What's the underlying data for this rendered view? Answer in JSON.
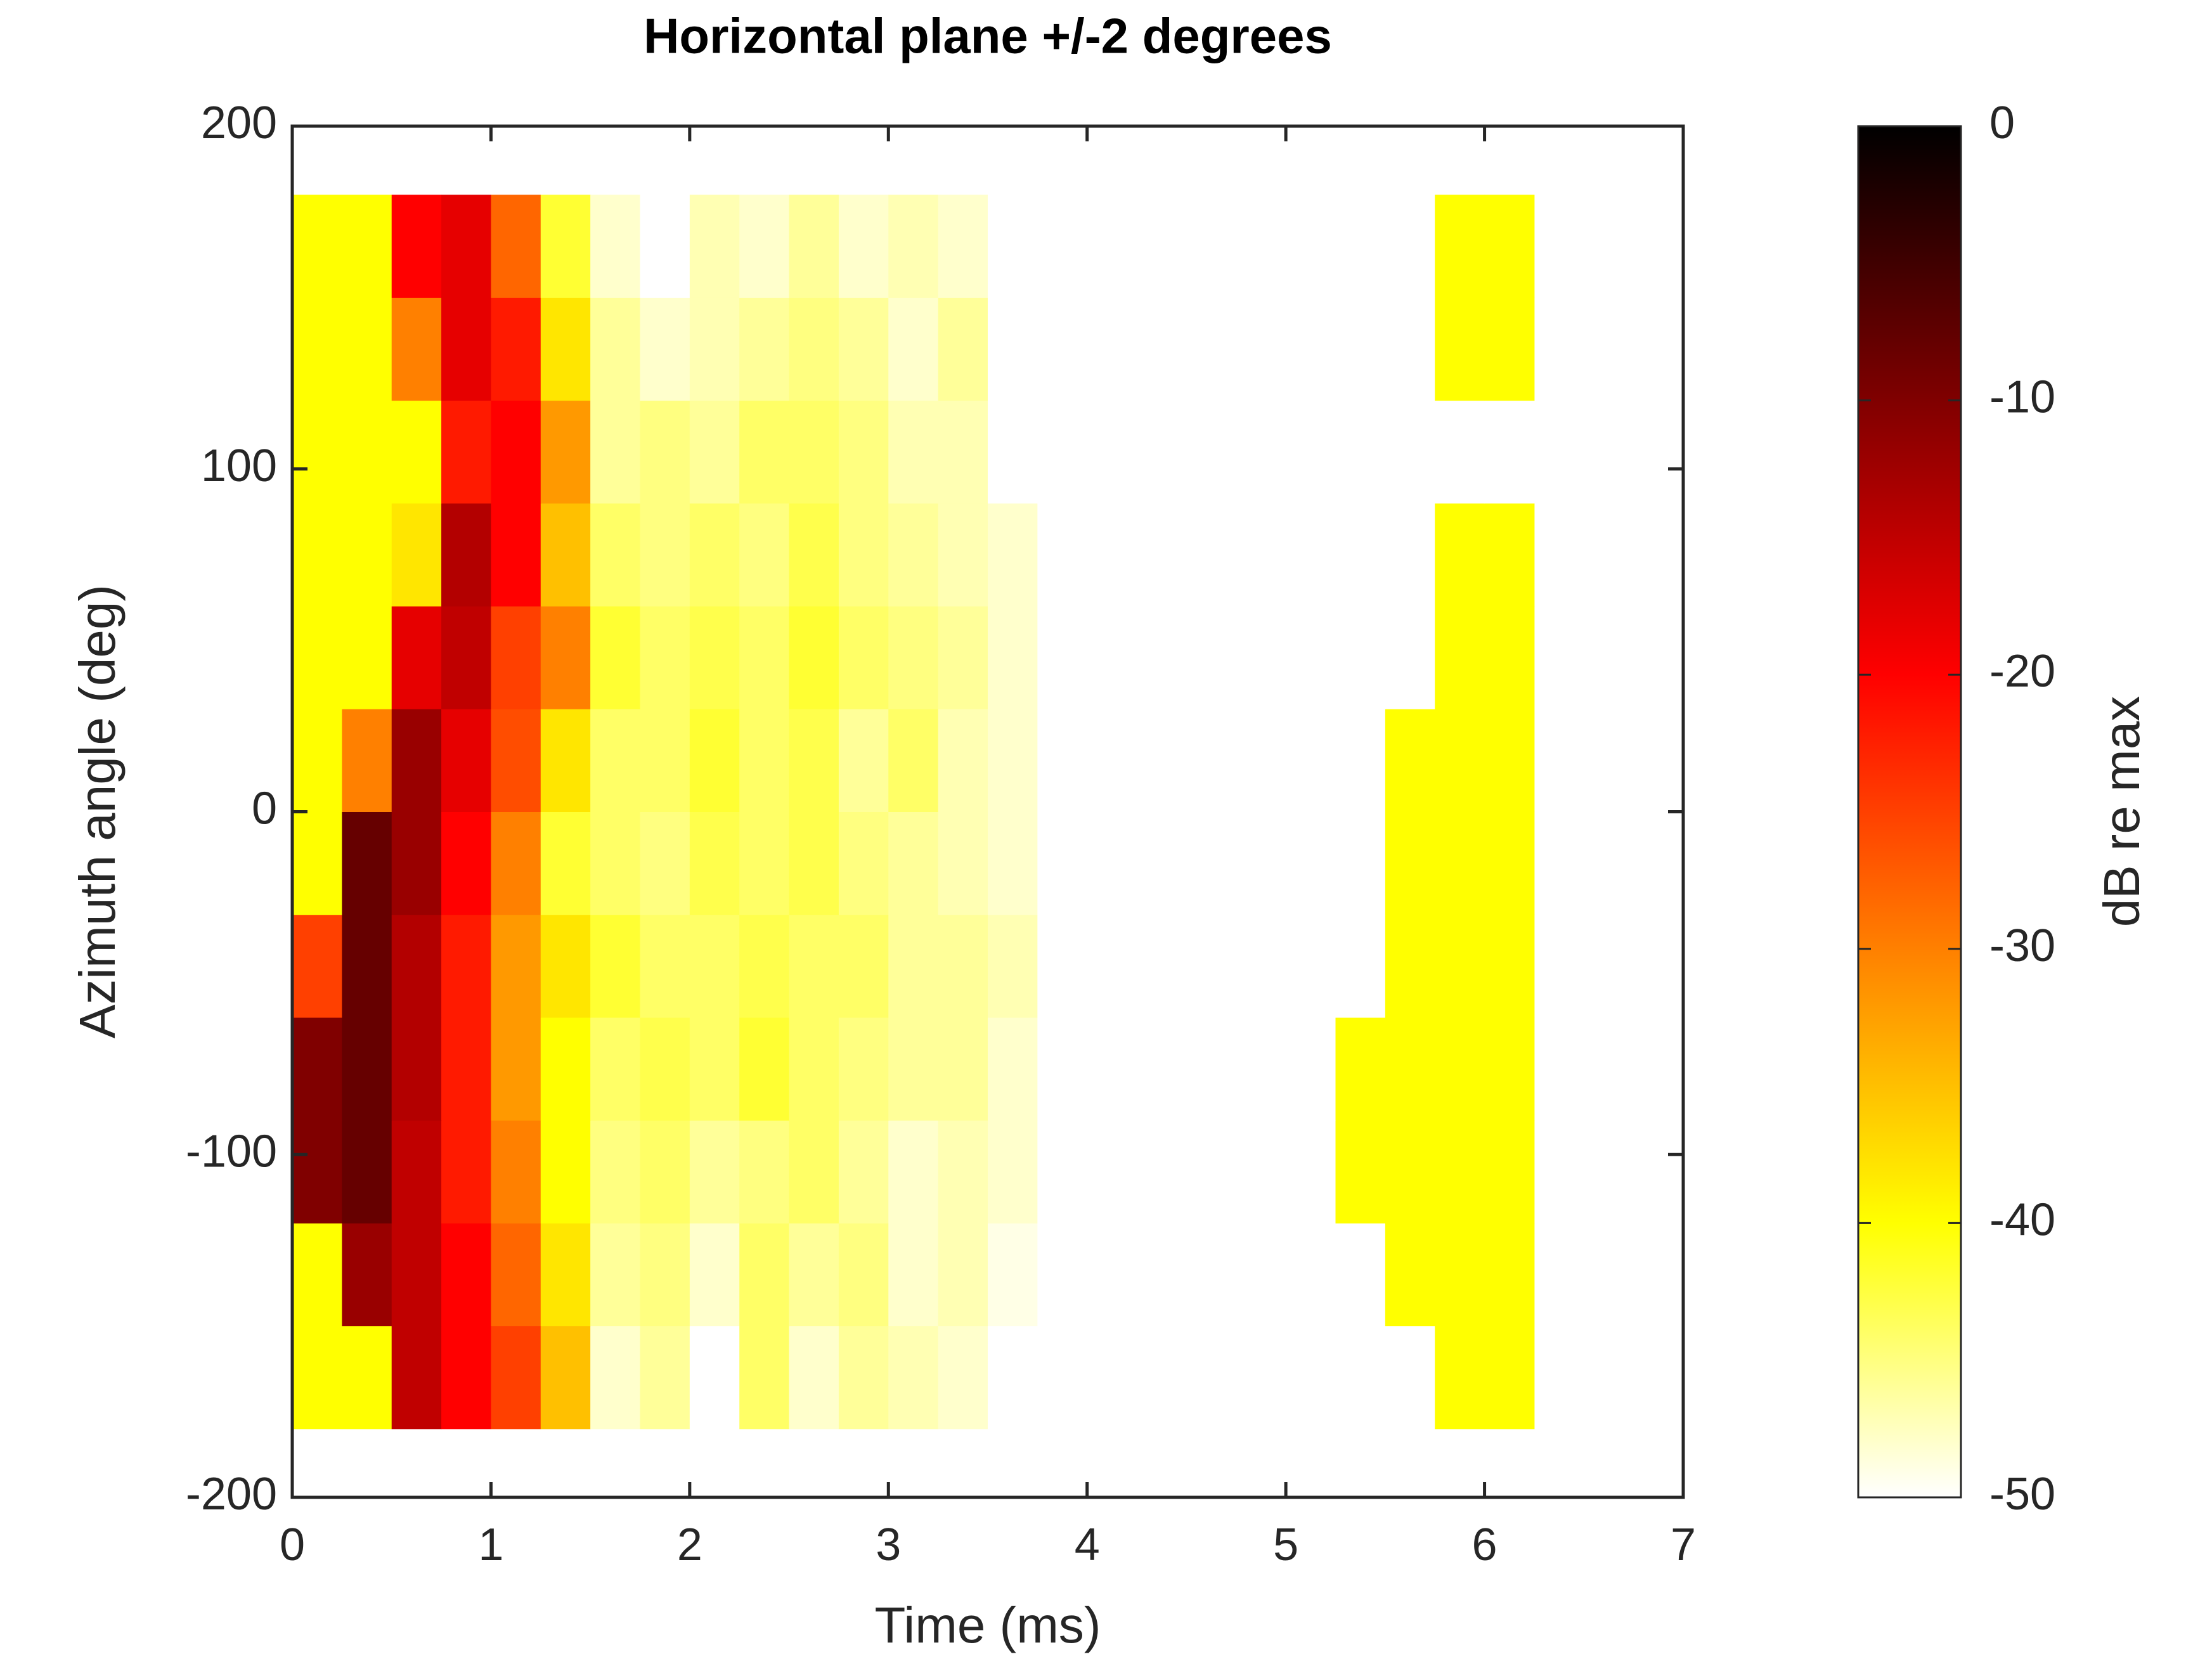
{
  "chart_data": {
    "type": "heatmap",
    "title": "Horizontal plane +/-2 degrees",
    "x_label": "Time (ms)",
    "y_label": "Azimuth angle (deg)",
    "colorbar_label": "dB re max",
    "xlim": [
      0,
      7
    ],
    "xticks": [
      0,
      1,
      2,
      3,
      4,
      5,
      6,
      7
    ],
    "ylim": [
      -200,
      200
    ],
    "yticks": [
      -200,
      -100,
      0,
      100,
      200
    ],
    "clim": [
      -50,
      0
    ],
    "cticks": [
      -50,
      -40,
      -30,
      -20,
      -10,
      0
    ],
    "colormap": [
      "#ffffff",
      "#ffff00",
      "#ff8000",
      "#ff0000",
      "#800000",
      "#000000"
    ],
    "x_edges": [
      0,
      0.25,
      0.5,
      0.75,
      1,
      1.25,
      1.5,
      1.75,
      2,
      2.25,
      2.5,
      2.75,
      3,
      3.25,
      3.5,
      3.75,
      4,
      4.25,
      4.5,
      4.75,
      5,
      5.25,
      5.5,
      5.75,
      6,
      6.25
    ],
    "y_edges": [
      -180,
      -150,
      -120,
      -90,
      -60,
      -30,
      0,
      30,
      60,
      90,
      120,
      150,
      180
    ],
    "z": [
      [
        -40,
        -40,
        -15,
        -20,
        -25,
        -35,
        -48,
        -46,
        -50,
        -44,
        -48,
        -46,
        -47,
        -48,
        -50,
        -50,
        -50,
        -50,
        -50,
        -50,
        -50,
        -50,
        -50,
        -40,
        -40
      ],
      [
        -40,
        -12,
        -15,
        -20,
        -28,
        -38,
        -46,
        -45,
        -48,
        -44,
        -46,
        -45,
        -48,
        -47,
        -49,
        -50,
        -50,
        -50,
        -50,
        -50,
        -50,
        -50,
        -40,
        -40,
        -40
      ],
      [
        -10,
        -8,
        -15,
        -22,
        -30,
        -40,
        -45,
        -44,
        -46,
        -45,
        -44,
        -46,
        -48,
        -47,
        -48,
        -50,
        -50,
        -50,
        -50,
        -50,
        -50,
        -40,
        -40,
        -40,
        -40
      ],
      [
        -10,
        -8,
        -14,
        -22,
        -32,
        -40,
        -44,
        -43,
        -44,
        -42,
        -44,
        -45,
        -46,
        -46,
        -48,
        -50,
        -50,
        -50,
        -50,
        -50,
        -50,
        -40,
        -40,
        -40,
        -40
      ],
      [
        -25,
        -8,
        -14,
        -22,
        -32,
        -38,
        -42,
        -44,
        -44,
        -43,
        -44,
        -44,
        -46,
        -46,
        -47,
        -50,
        -50,
        -50,
        -50,
        -50,
        -50,
        -50,
        -40,
        -40,
        -40
      ],
      [
        -40,
        -8,
        -12,
        -20,
        -30,
        -42,
        -44,
        -45,
        -43,
        -44,
        -43,
        -45,
        -46,
        -47,
        -48,
        -50,
        -50,
        -50,
        -50,
        -50,
        -50,
        -50,
        -40,
        -40,
        -40
      ],
      [
        -40,
        -30,
        -12,
        -18,
        -26,
        -38,
        -44,
        -44,
        -42,
        -44,
        -43,
        -46,
        -44,
        -47,
        -48,
        -50,
        -50,
        -50,
        -50,
        -50,
        -50,
        -50,
        -40,
        -40,
        -40
      ],
      [
        -40,
        -40,
        -18,
        -15,
        -25,
        -30,
        -42,
        -44,
        -43,
        -44,
        -42,
        -44,
        -45,
        -46,
        -48,
        -50,
        -50,
        -50,
        -50,
        -50,
        -50,
        -50,
        -50,
        -40,
        -40
      ],
      [
        -40,
        -40,
        -38,
        -14,
        -20,
        -35,
        -44,
        -45,
        -44,
        -45,
        -43,
        -45,
        -46,
        -47,
        -48,
        -50,
        -50,
        -50,
        -50,
        -50,
        -50,
        -50,
        -50,
        -40,
        -40
      ],
      [
        -40,
        -40,
        -40,
        -22,
        -20,
        -32,
        -46,
        -45,
        -46,
        -44,
        -44,
        -45,
        -47,
        -47,
        -50,
        -50,
        -50,
        -50,
        -50,
        -50,
        -50,
        -50,
        -50,
        -50,
        -50
      ],
      [
        -40,
        -40,
        -30,
        -18,
        -22,
        -38,
        -46,
        -48,
        -47,
        -46,
        -45,
        -46,
        -48,
        -46,
        -50,
        -50,
        -50,
        -50,
        -50,
        -50,
        -50,
        -50,
        -50,
        -40,
        -40
      ],
      [
        -40,
        -40,
        -20,
        -18,
        -28,
        -42,
        -48,
        -50,
        -47,
        -48,
        -46,
        -48,
        -47,
        -48,
        -50,
        -50,
        -50,
        -50,
        -50,
        -50,
        -50,
        -50,
        -50,
        -40,
        -40
      ]
    ]
  }
}
